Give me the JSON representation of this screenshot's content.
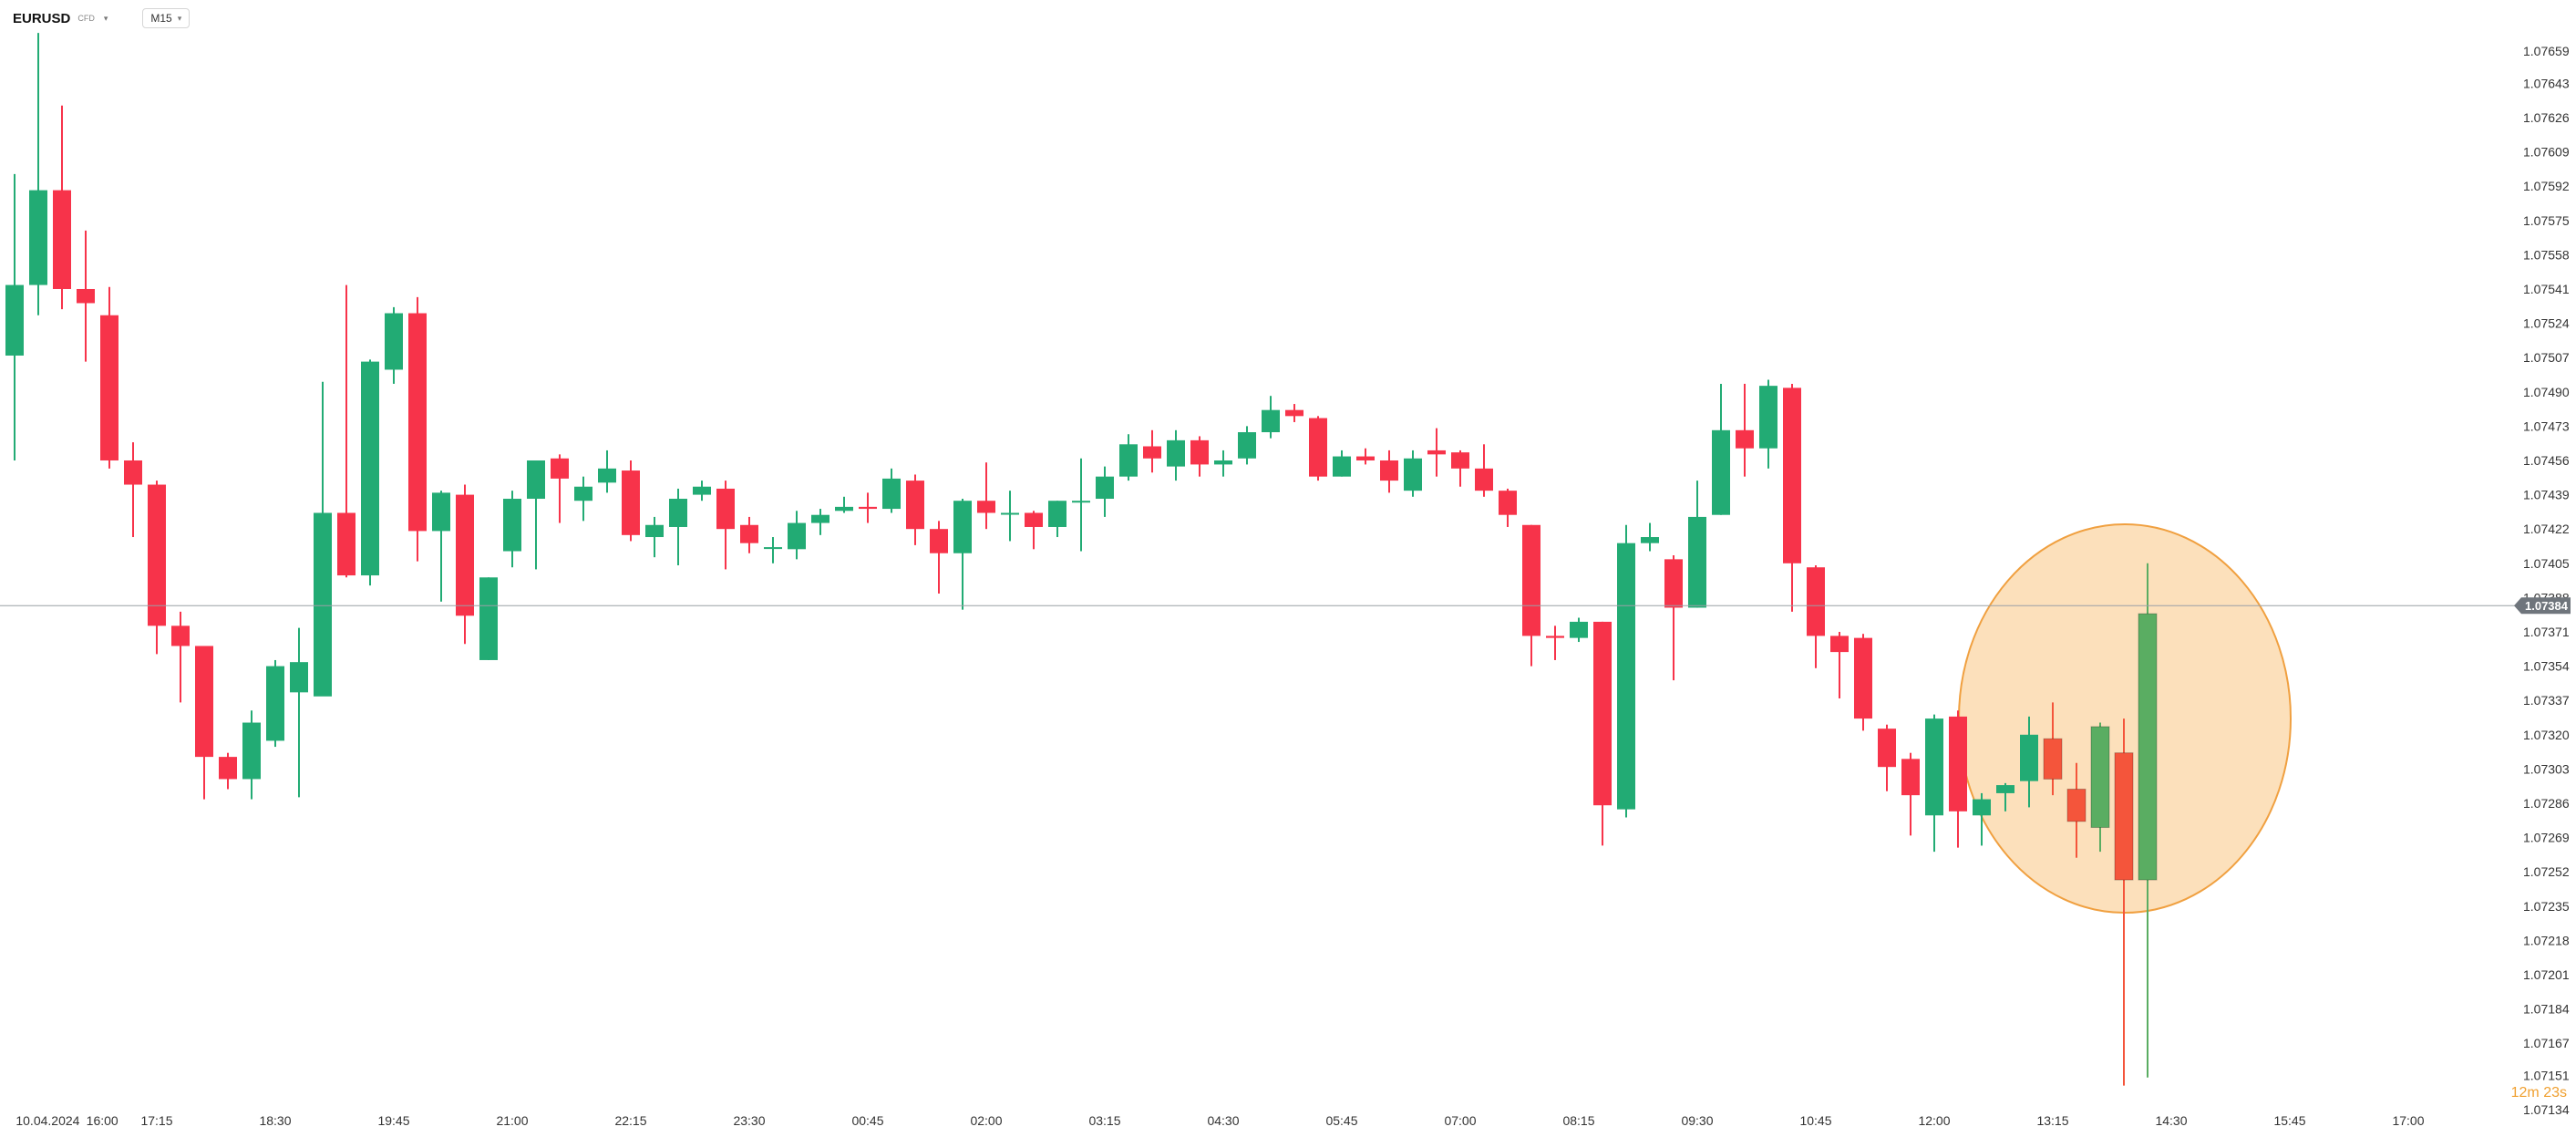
{
  "toolbar": {
    "symbol": "EURUSD",
    "symbol_badge": "CFD",
    "timeframe": "M15"
  },
  "countdown": "12m 23s",
  "colors": {
    "up": "#22ab74",
    "down": "#f7334a",
    "highlight_up": "#5aad62",
    "highlight_down": "#f4553b",
    "highlight_fill": "#fbd6a4",
    "highlight_stroke": "#f0a040",
    "price_line": "#9aa0a6",
    "price_tag": "#6f757c"
  },
  "chart_data": {
    "type": "candlestick",
    "symbol": "EURUSD",
    "timeframe": "M15",
    "current_price": 1.07384,
    "y_ticks": [
      1.07659,
      1.07643,
      1.07626,
      1.07609,
      1.07592,
      1.07575,
      1.07558,
      1.07541,
      1.07524,
      1.07507,
      1.0749,
      1.07473,
      1.07456,
      1.07439,
      1.07422,
      1.07405,
      1.07388,
      1.07371,
      1.07354,
      1.07337,
      1.0732,
      1.07303,
      1.07286,
      1.07269,
      1.07252,
      1.07235,
      1.07218,
      1.07201,
      1.07184,
      1.07167,
      1.07151,
      1.07134
    ],
    "y_tick_labels": [
      "1.07659",
      "1.07643",
      "1.07626",
      "1.07609",
      "1.07592",
      "1.07575",
      "1.07558",
      "1.07541",
      "1.07524",
      "1.07507",
      "1.07490",
      "1.07473",
      "1.07456",
      "1.07439",
      "1.07422",
      "1.07405",
      "1.07388",
      "1.07371",
      "1.07354",
      "1.07337",
      "1.07320",
      "1.07303",
      "1.07286",
      "1.07269",
      "1.07252",
      "1.07235",
      "1.07218",
      "1.07201",
      "1.07184",
      "1.07167",
      "1.07151",
      "1.07134"
    ],
    "ylim": [
      1.0713,
      1.0768
    ],
    "x_labels": [
      {
        "label": "10.04.2024",
        "index": 1.4
      },
      {
        "label": "16:00",
        "index": 3.7
      },
      {
        "label": "17:15",
        "index": 6
      },
      {
        "label": "18:30",
        "index": 11
      },
      {
        "label": "19:45",
        "index": 16
      },
      {
        "label": "21:00",
        "index": 21
      },
      {
        "label": "22:15",
        "index": 26
      },
      {
        "label": "23:30",
        "index": 31
      },
      {
        "label": "00:45",
        "index": 36
      },
      {
        "label": "02:00",
        "index": 41
      },
      {
        "label": "03:15",
        "index": 46
      },
      {
        "label": "04:30",
        "index": 51
      },
      {
        "label": "05:45",
        "index": 56
      },
      {
        "label": "07:00",
        "index": 61
      },
      {
        "label": "08:15",
        "index": 66
      },
      {
        "label": "09:30",
        "index": 71
      },
      {
        "label": "10:45",
        "index": 76
      },
      {
        "label": "12:00",
        "index": 81
      },
      {
        "label": "13:15",
        "index": 86
      },
      {
        "label": "14:30",
        "index": 91
      },
      {
        "label": "15:45",
        "index": 96
      },
      {
        "label": "17:00",
        "index": 101
      }
    ],
    "candles": [
      [
        1.07508,
        1.07543,
        1.07598,
        1.07456
      ],
      [
        1.07543,
        1.0759,
        1.07668,
        1.07528
      ],
      [
        1.0759,
        1.07541,
        1.07632,
        1.07531
      ],
      [
        1.07541,
        1.07534,
        1.0757,
        1.07505
      ],
      [
        1.07528,
        1.07456,
        1.07542,
        1.07452
      ],
      [
        1.07456,
        1.07444,
        1.07465,
        1.07418
      ],
      [
        1.07444,
        1.07374,
        1.07446,
        1.0736
      ],
      [
        1.07374,
        1.07364,
        1.07381,
        1.07336
      ],
      [
        1.07364,
        1.07309,
        1.07364,
        1.07288
      ],
      [
        1.07309,
        1.07298,
        1.07311,
        1.07293
      ],
      [
        1.07298,
        1.07326,
        1.07332,
        1.07288
      ],
      [
        1.07317,
        1.07354,
        1.07357,
        1.07314
      ],
      [
        1.07341,
        1.07356,
        1.07373,
        1.07289
      ],
      [
        1.07339,
        1.0743,
        1.07495,
        1.0734
      ],
      [
        1.0743,
        1.07399,
        1.07543,
        1.07398
      ],
      [
        1.07399,
        1.07505,
        1.07506,
        1.07394
      ],
      [
        1.07501,
        1.07529,
        1.07532,
        1.07494
      ],
      [
        1.07529,
        1.07421,
        1.07537,
        1.07406
      ],
      [
        1.07421,
        1.0744,
        1.07441,
        1.07386
      ],
      [
        1.07439,
        1.07379,
        1.07444,
        1.07365
      ],
      [
        1.07357,
        1.07398,
        1.07398,
        1.07357
      ],
      [
        1.07411,
        1.07437,
        1.07441,
        1.07403
      ],
      [
        1.07437,
        1.07456,
        1.07456,
        1.07402
      ],
      [
        1.07457,
        1.07447,
        1.07459,
        1.07425
      ],
      [
        1.07436,
        1.07443,
        1.07448,
        1.07426
      ],
      [
        1.07445,
        1.07452,
        1.07461,
        1.0744
      ],
      [
        1.07451,
        1.07419,
        1.07456,
        1.07416
      ],
      [
        1.07418,
        1.07424,
        1.07428,
        1.07408
      ],
      [
        1.07423,
        1.07437,
        1.07442,
        1.07404
      ],
      [
        1.07439,
        1.07443,
        1.07446,
        1.07436
      ],
      [
        1.07442,
        1.07422,
        1.07446,
        1.07402
      ],
      [
        1.07424,
        1.07415,
        1.07428,
        1.0741
      ],
      [
        1.07413,
        1.07413,
        1.07418,
        1.07405
      ],
      [
        1.07412,
        1.07425,
        1.07431,
        1.07407
      ],
      [
        1.07425,
        1.07429,
        1.07432,
        1.07419
      ],
      [
        1.07431,
        1.07433,
        1.07438,
        1.0743
      ],
      [
        1.07433,
        1.07432,
        1.0744,
        1.07425
      ],
      [
        1.07432,
        1.07447,
        1.07452,
        1.0743
      ],
      [
        1.07446,
        1.07422,
        1.07449,
        1.07414
      ],
      [
        1.07422,
        1.0741,
        1.07426,
        1.0739
      ],
      [
        1.0741,
        1.07436,
        1.07437,
        1.07382
      ],
      [
        1.07436,
        1.0743,
        1.07455,
        1.07422
      ],
      [
        1.0743,
        1.0743,
        1.07441,
        1.07416
      ],
      [
        1.0743,
        1.07423,
        1.07431,
        1.07412
      ],
      [
        1.07423,
        1.07436,
        1.07436,
        1.07418
      ],
      [
        1.07436,
        1.07436,
        1.07457,
        1.07411
      ],
      [
        1.07437,
        1.07448,
        1.07453,
        1.07428
      ],
      [
        1.07448,
        1.07464,
        1.07469,
        1.07446
      ],
      [
        1.07463,
        1.07457,
        1.07471,
        1.0745
      ],
      [
        1.07453,
        1.07466,
        1.07471,
        1.07446
      ],
      [
        1.07466,
        1.07454,
        1.07468,
        1.07448
      ],
      [
        1.07454,
        1.07456,
        1.07461,
        1.07448
      ],
      [
        1.07457,
        1.0747,
        1.07473,
        1.07454
      ],
      [
        1.0747,
        1.07481,
        1.07488,
        1.07467
      ],
      [
        1.07481,
        1.07478,
        1.07484,
        1.07475
      ],
      [
        1.07477,
        1.07448,
        1.07478,
        1.07446
      ],
      [
        1.07448,
        1.07458,
        1.07461,
        1.07448
      ],
      [
        1.07458,
        1.07456,
        1.07462,
        1.07454
      ],
      [
        1.07456,
        1.07446,
        1.07461,
        1.0744
      ],
      [
        1.07441,
        1.07457,
        1.07461,
        1.07438
      ],
      [
        1.07461,
        1.07459,
        1.07472,
        1.07448
      ],
      [
        1.0746,
        1.07452,
        1.07461,
        1.07443
      ],
      [
        1.07452,
        1.07441,
        1.07464,
        1.07438
      ],
      [
        1.07441,
        1.07429,
        1.07442,
        1.07423
      ],
      [
        1.07424,
        1.07369,
        1.07424,
        1.07354
      ],
      [
        1.07369,
        1.07368,
        1.07374,
        1.07357
      ],
      [
        1.07368,
        1.07376,
        1.07378,
        1.07366
      ],
      [
        1.07376,
        1.07285,
        1.07376,
        1.07265
      ],
      [
        1.07283,
        1.07415,
        1.07424,
        1.07279
      ],
      [
        1.07415,
        1.07418,
        1.07425,
        1.07411
      ],
      [
        1.07407,
        1.07383,
        1.07409,
        1.07347
      ],
      [
        1.07383,
        1.07428,
        1.07446,
        1.07383
      ],
      [
        1.07429,
        1.07471,
        1.07494,
        1.07429
      ],
      [
        1.07471,
        1.07462,
        1.07494,
        1.07448
      ],
      [
        1.07462,
        1.07493,
        1.07496,
        1.07452
      ],
      [
        1.07492,
        1.07405,
        1.07494,
        1.07381
      ],
      [
        1.07403,
        1.07369,
        1.07404,
        1.07353
      ],
      [
        1.07369,
        1.07361,
        1.07371,
        1.07338
      ],
      [
        1.07368,
        1.07328,
        1.0737,
        1.07322
      ],
      [
        1.07323,
        1.07304,
        1.07325,
        1.07292
      ],
      [
        1.07308,
        1.0729,
        1.07311,
        1.0727
      ],
      [
        1.0728,
        1.07328,
        1.0733,
        1.07262
      ],
      [
        1.07329,
        1.07282,
        1.07332,
        1.07264
      ],
      [
        1.0728,
        1.07288,
        1.07291,
        1.07265
      ],
      [
        1.07291,
        1.07295,
        1.07296,
        1.07282
      ],
      [
        1.07297,
        1.0732,
        1.07329,
        1.07284
      ],
      [
        1.07318,
        1.07298,
        1.07336,
        1.0729
      ],
      [
        1.07293,
        1.07277,
        1.07306,
        1.07259
      ],
      [
        1.07274,
        1.07324,
        1.07326,
        1.07262
      ],
      [
        1.07311,
        1.07248,
        1.07328,
        1.07146
      ],
      [
        1.07248,
        1.0738,
        1.07405,
        1.0715
      ]
    ],
    "highlighted_range": [
      86,
      91
    ]
  }
}
